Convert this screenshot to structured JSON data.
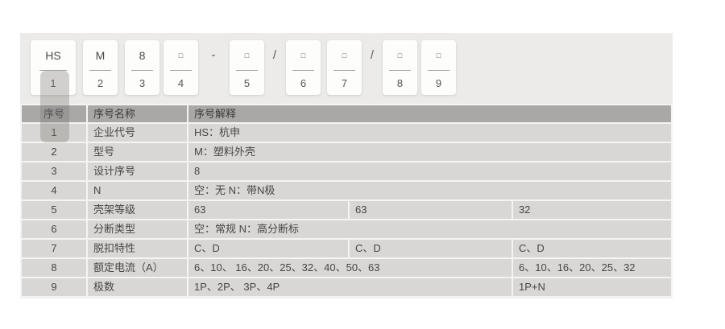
{
  "colors": {
    "panel_bg": "#ecebe9",
    "card_bg": "#fdfdfc",
    "header_bg": "#a9a8a7",
    "row_bg": "#d8d7d5",
    "highlight": "rgba(125,123,119,0.35)"
  },
  "code_builder": {
    "items": [
      {
        "type": "segment",
        "char": "HS",
        "num": "1"
      },
      {
        "type": "segment",
        "char": "M",
        "num": "2"
      },
      {
        "type": "segment",
        "char": "8",
        "num": "3"
      },
      {
        "type": "segment",
        "char": "□",
        "num": "4"
      },
      {
        "type": "separator",
        "char": "-"
      },
      {
        "type": "segment",
        "char": "□",
        "num": "5"
      },
      {
        "type": "separator",
        "char": "/"
      },
      {
        "type": "segment",
        "char": "□",
        "num": "6"
      },
      {
        "type": "segment",
        "char": "□",
        "num": "7"
      },
      {
        "type": "separator",
        "char": "/"
      },
      {
        "type": "segment",
        "char": "□",
        "num": "8"
      },
      {
        "type": "segment",
        "char": "□",
        "num": "9"
      }
    ]
  },
  "table": {
    "headers": [
      "序号",
      "序号名称",
      "序号解释"
    ],
    "rows": [
      {
        "num": "1",
        "name": "企业代号",
        "cells": [
          {
            "text": "HS：杭申",
            "span": 3
          }
        ]
      },
      {
        "num": "2",
        "name": "型号",
        "cells": [
          {
            "text": "M：塑料外壳",
            "span": 3
          }
        ]
      },
      {
        "num": "3",
        "name": "设计序号",
        "cells": [
          {
            "text": "8",
            "span": 3
          }
        ]
      },
      {
        "num": "4",
        "name": "N",
        "cells": [
          {
            "text": "空：无 N：带N极",
            "span": 3
          }
        ]
      },
      {
        "num": "5",
        "name": "壳架等级",
        "cells": [
          {
            "text": "63",
            "span": 1
          },
          {
            "text": "63",
            "span": 1
          },
          {
            "text": "32",
            "span": 1
          }
        ]
      },
      {
        "num": "6",
        "name": "分断类型",
        "cells": [
          {
            "text": "空：常规 N：高分断标",
            "span": 3
          }
        ]
      },
      {
        "num": "7",
        "name": "脱扣特性",
        "cells": [
          {
            "text": "C、D",
            "span": 1
          },
          {
            "text": "C、D",
            "span": 1
          },
          {
            "text": "C、D",
            "span": 1
          }
        ]
      },
      {
        "num": "8",
        "name": "额定电流（A）",
        "cells": [
          {
            "text": "6、10、 16、20、25、32、40、50、63",
            "span": 2
          },
          {
            "text": "6、10、16、20、25、32",
            "span": 1
          }
        ]
      },
      {
        "num": "9",
        "name": "极数",
        "cells": [
          {
            "text": "1P、2P、 3P、4P",
            "span": 2
          },
          {
            "text": "1P+N",
            "span": 1
          }
        ]
      }
    ]
  }
}
